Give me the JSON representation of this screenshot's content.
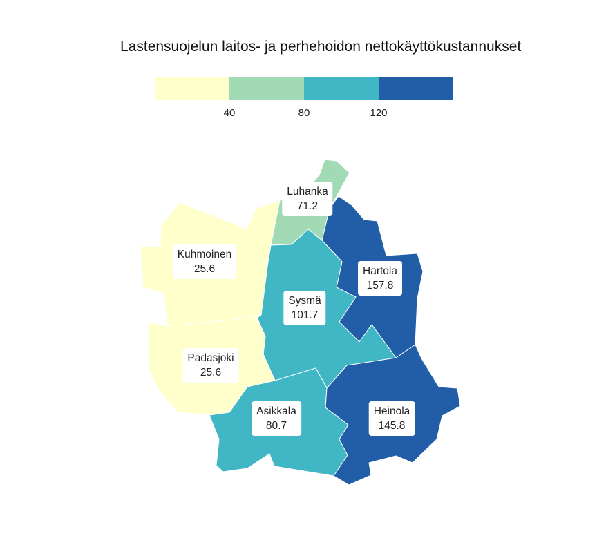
{
  "title": "Lastensuojelun laitos- ja perhehoidon nettokäyttökustannukset",
  "legend": {
    "colors": [
      "#ffffcc",
      "#a1dab4",
      "#41b6c4",
      "#225ea8"
    ],
    "ticks": [
      "40",
      "80",
      "120"
    ]
  },
  "municipalities": [
    {
      "name": "Luhanka",
      "value": "71.2",
      "color": "#a1dab4"
    },
    {
      "name": "Kuhmoinen",
      "value": "25.6",
      "color": "#ffffcc"
    },
    {
      "name": "Hartola",
      "value": "157.8",
      "color": "#225ea8"
    },
    {
      "name": "Sysmä",
      "value": "101.7",
      "color": "#41b6c4"
    },
    {
      "name": "Padasjoki",
      "value": "25.6",
      "color": "#ffffcc"
    },
    {
      "name": "Asikkala",
      "value": "80.7",
      "color": "#41b6c4"
    },
    {
      "name": "Heinola",
      "value": "145.8",
      "color": "#225ea8"
    }
  ]
}
